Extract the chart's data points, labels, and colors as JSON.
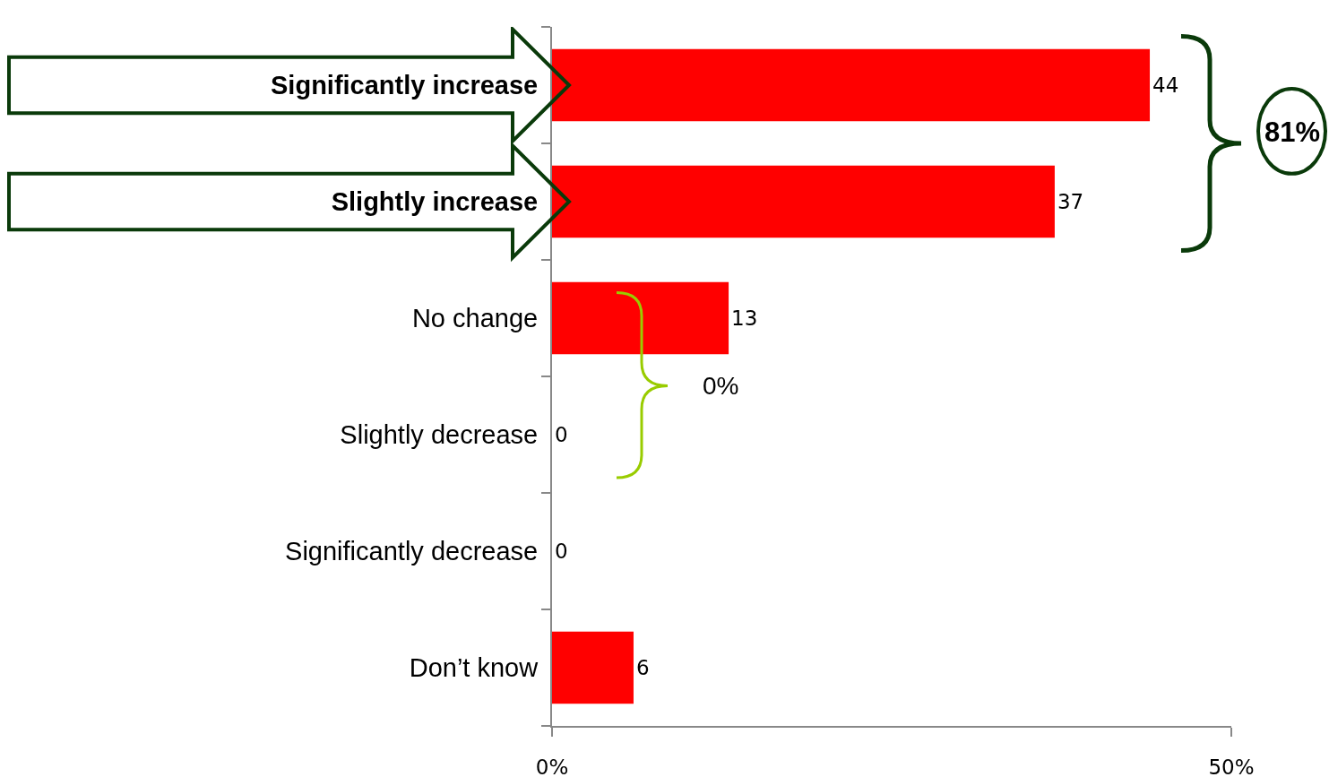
{
  "chart_data": {
    "type": "bar",
    "orientation": "horizontal",
    "categories": [
      "Significantly increase",
      "Slightly increase",
      "No change",
      "Slightly decrease",
      "Significantly decrease",
      "Don’t know"
    ],
    "values": [
      44,
      37,
      13,
      0,
      0,
      6
    ],
    "color": "#ff0000",
    "xlim": [
      0,
      50
    ],
    "xticks": [
      {
        "value": 0,
        "label": "0%"
      },
      {
        "value": 50,
        "label": "50%"
      }
    ],
    "data_labels": true,
    "annotations": [
      "81%",
      "0%"
    ]
  }
}
